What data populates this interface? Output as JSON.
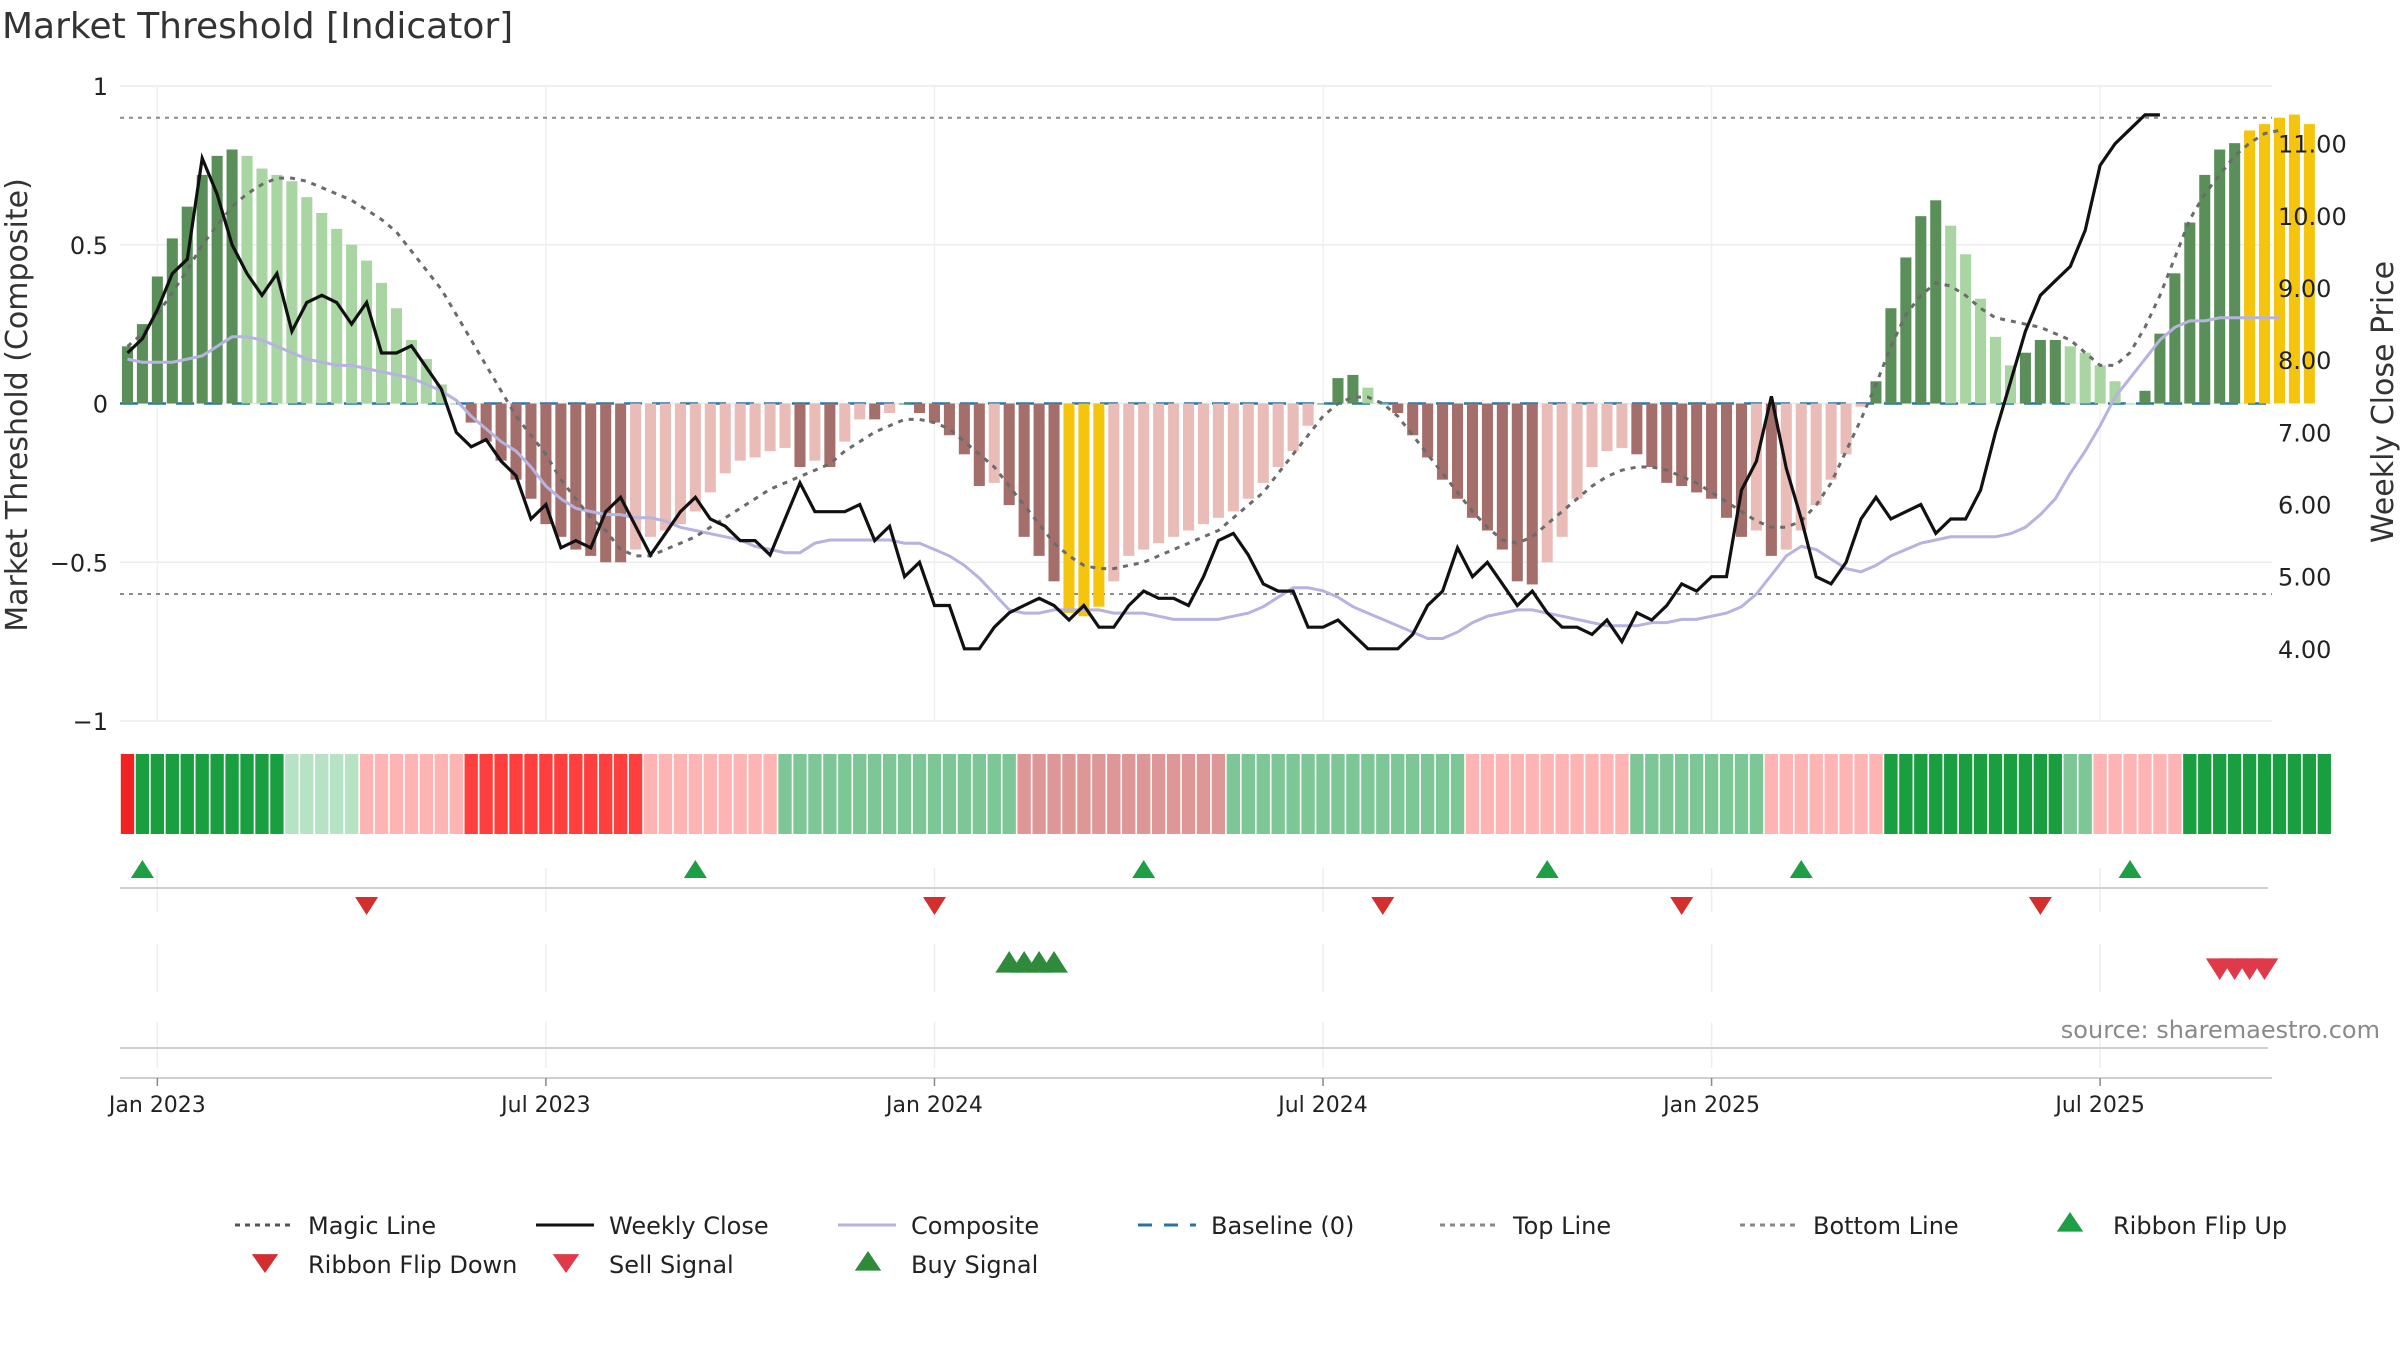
{
  "chart_data": {
    "type": "bar",
    "title": "Market Threshold [Indicator]",
    "ylabel_left": "Market Threshold (Composite)",
    "ylabel_right": "Weekly Close Price",
    "ylim_left": [
      -1,
      1
    ],
    "ylim_right": [
      3.0,
      11.8
    ],
    "left_ticks": [
      {
        "v": 1,
        "t": "1"
      },
      {
        "v": 0.5,
        "t": "0.5"
      },
      {
        "v": 0,
        "t": "0"
      },
      {
        "v": -0.5,
        "t": "−0.5"
      },
      {
        "v": -1,
        "t": "−1"
      }
    ],
    "right_ticks": [
      {
        "v": 11,
        "t": "11.00"
      },
      {
        "v": 10,
        "t": "10.00"
      },
      {
        "v": 9,
        "t": "9.00"
      },
      {
        "v": 8,
        "t": "8.00"
      },
      {
        "v": 7,
        "t": "7.00"
      },
      {
        "v": 6,
        "t": "6.00"
      },
      {
        "v": 5,
        "t": "5.00"
      },
      {
        "v": 4,
        "t": "4.00"
      }
    ],
    "x_ticks": [
      {
        "w": 2,
        "t": "Jan 2023"
      },
      {
        "w": 28,
        "t": "Jul 2023"
      },
      {
        "w": 54,
        "t": "Jan 2024"
      },
      {
        "w": 80,
        "t": "Jul 2024"
      },
      {
        "w": 106,
        "t": "Jan 2025"
      },
      {
        "w": 132,
        "t": "Jul 2025"
      }
    ],
    "weeks": 144,
    "top_line": 0.9,
    "bottom_line": -0.6,
    "baseline": 0,
    "histogram": [
      0.18,
      0.25,
      0.4,
      0.52,
      0.62,
      0.72,
      0.78,
      0.8,
      0.78,
      0.74,
      0.72,
      0.7,
      0.65,
      0.6,
      0.55,
      0.5,
      0.45,
      0.38,
      0.3,
      0.2,
      0.14,
      0.06,
      0.0,
      -0.06,
      -0.12,
      -0.18,
      -0.24,
      -0.3,
      -0.38,
      -0.42,
      -0.46,
      -0.48,
      -0.5,
      -0.5,
      -0.46,
      -0.42,
      -0.4,
      -0.38,
      -0.34,
      -0.28,
      -0.22,
      -0.18,
      -0.17,
      -0.15,
      -0.14,
      -0.2,
      -0.18,
      -0.2,
      -0.12,
      -0.05,
      -0.05,
      -0.03,
      0.0,
      -0.03,
      -0.06,
      -0.1,
      -0.16,
      -0.26,
      -0.25,
      -0.32,
      -0.42,
      -0.48,
      -0.56,
      -0.66,
      -0.67,
      -0.64,
      -0.56,
      -0.48,
      -0.46,
      -0.44,
      -0.42,
      -0.4,
      -0.38,
      -0.36,
      -0.34,
      -0.3,
      -0.25,
      -0.2,
      -0.15,
      -0.07,
      0.0,
      0.08,
      0.09,
      0.05,
      0.0,
      -0.03,
      -0.1,
      -0.17,
      -0.24,
      -0.3,
      -0.36,
      -0.4,
      -0.46,
      -0.56,
      -0.57,
      -0.5,
      -0.42,
      -0.3,
      -0.2,
      -0.15,
      -0.14,
      -0.16,
      -0.2,
      -0.25,
      -0.26,
      -0.28,
      -0.3,
      -0.36,
      -0.42,
      -0.4,
      -0.48,
      -0.46,
      -0.4,
      -0.32,
      -0.24,
      -0.16,
      -0.01,
      0.07,
      0.3,
      0.46,
      0.59,
      0.64,
      0.56,
      0.47,
      0.33,
      0.21,
      0.12,
      0.16,
      0.2,
      0.2,
      0.18,
      0.16,
      0.12,
      0.07,
      0.0,
      0.04,
      0.22,
      0.41,
      0.57,
      0.72,
      0.8,
      0.82,
      0.86,
      0.88,
      0.9,
      0.91,
      0.88
    ],
    "composite": [
      0.14,
      0.13,
      0.13,
      0.13,
      0.14,
      0.15,
      0.18,
      0.21,
      0.21,
      0.2,
      0.18,
      0.16,
      0.14,
      0.13,
      0.12,
      0.12,
      0.11,
      0.1,
      0.09,
      0.08,
      0.06,
      0.04,
      0.01,
      -0.04,
      -0.08,
      -0.12,
      -0.15,
      -0.2,
      -0.26,
      -0.3,
      -0.33,
      -0.34,
      -0.35,
      -0.35,
      -0.36,
      -0.36,
      -0.37,
      -0.39,
      -0.4,
      -0.41,
      -0.42,
      -0.43,
      -0.45,
      -0.46,
      -0.47,
      -0.47,
      -0.44,
      -0.43,
      -0.43,
      -0.43,
      -0.43,
      -0.43,
      -0.44,
      -0.44,
      -0.46,
      -0.48,
      -0.51,
      -0.55,
      -0.6,
      -0.65,
      -0.66,
      -0.66,
      -0.65,
      -0.65,
      -0.65,
      -0.65,
      -0.66,
      -0.66,
      -0.66,
      -0.67,
      -0.68,
      -0.68,
      -0.68,
      -0.68,
      -0.67,
      -0.66,
      -0.64,
      -0.61,
      -0.58,
      -0.58,
      -0.59,
      -0.61,
      -0.64,
      -0.66,
      -0.68,
      -0.7,
      -0.72,
      -0.74,
      -0.74,
      -0.72,
      -0.69,
      -0.67,
      -0.66,
      -0.65,
      -0.65,
      -0.66,
      -0.67,
      -0.68,
      -0.69,
      -0.7,
      -0.7,
      -0.7,
      -0.69,
      -0.69,
      -0.68,
      -0.68,
      -0.67,
      -0.66,
      -0.64,
      -0.6,
      -0.54,
      -0.48,
      -0.45,
      -0.46,
      -0.49,
      -0.52,
      -0.53,
      -0.51,
      -0.48,
      -0.46,
      -0.44,
      -0.43,
      -0.42,
      -0.42,
      -0.42,
      -0.42,
      -0.41,
      -0.39,
      -0.35,
      -0.3,
      -0.22,
      -0.15,
      -0.07,
      0.02,
      0.08,
      0.14,
      0.2,
      0.24,
      0.26,
      0.26,
      0.27,
      0.27,
      0.27,
      0.27,
      0.27
    ],
    "magic_line": [
      0.18,
      0.22,
      0.28,
      0.35,
      0.42,
      0.5,
      0.56,
      0.62,
      0.66,
      0.69,
      0.71,
      0.71,
      0.7,
      0.68,
      0.66,
      0.64,
      0.61,
      0.58,
      0.54,
      0.48,
      0.42,
      0.36,
      0.28,
      0.2,
      0.12,
      0.04,
      -0.04,
      -0.1,
      -0.16,
      -0.24,
      -0.3,
      -0.36,
      -0.4,
      -0.46,
      -0.48,
      -0.48,
      -0.46,
      -0.44,
      -0.42,
      -0.39,
      -0.36,
      -0.33,
      -0.3,
      -0.27,
      -0.25,
      -0.23,
      -0.21,
      -0.19,
      -0.15,
      -0.12,
      -0.09,
      -0.07,
      -0.05,
      -0.05,
      -0.06,
      -0.08,
      -0.12,
      -0.16,
      -0.2,
      -0.26,
      -0.32,
      -0.38,
      -0.44,
      -0.48,
      -0.51,
      -0.52,
      -0.52,
      -0.51,
      -0.5,
      -0.48,
      -0.46,
      -0.44,
      -0.42,
      -0.4,
      -0.36,
      -0.32,
      -0.28,
      -0.22,
      -0.16,
      -0.1,
      -0.04,
      0.0,
      0.02,
      0.02,
      0.0,
      -0.04,
      -0.1,
      -0.16,
      -0.22,
      -0.28,
      -0.34,
      -0.39,
      -0.43,
      -0.44,
      -0.42,
      -0.38,
      -0.34,
      -0.3,
      -0.26,
      -0.23,
      -0.21,
      -0.2,
      -0.2,
      -0.21,
      -0.23,
      -0.25,
      -0.28,
      -0.31,
      -0.34,
      -0.37,
      -0.39,
      -0.39,
      -0.37,
      -0.32,
      -0.25,
      -0.15,
      -0.05,
      0.06,
      0.18,
      0.28,
      0.34,
      0.38,
      0.37,
      0.34,
      0.3,
      0.27,
      0.26,
      0.25,
      0.24,
      0.22,
      0.2,
      0.16,
      0.12,
      0.12,
      0.16,
      0.24,
      0.34,
      0.46,
      0.58,
      0.66,
      0.72,
      0.78,
      0.82,
      0.85,
      0.86
    ],
    "weekly_close": [
      8.1,
      8.3,
      8.7,
      9.2,
      9.4,
      10.8,
      10.3,
      9.6,
      9.2,
      8.9,
      9.2,
      8.4,
      8.8,
      8.9,
      8.8,
      8.5,
      8.8,
      8.1,
      8.1,
      8.2,
      7.9,
      7.6,
      7.0,
      6.8,
      6.9,
      6.6,
      6.4,
      5.8,
      6.0,
      5.4,
      5.5,
      5.4,
      5.9,
      6.1,
      5.7,
      5.3,
      5.6,
      5.9,
      6.1,
      5.8,
      5.7,
      5.5,
      5.5,
      5.3,
      5.8,
      6.3,
      5.9,
      5.9,
      5.9,
      6.0,
      5.5,
      5.7,
      5.0,
      5.2,
      4.6,
      4.6,
      4.0,
      4.0,
      4.3,
      4.5,
      4.6,
      4.7,
      4.6,
      4.4,
      4.6,
      4.3,
      4.3,
      4.6,
      4.8,
      4.7,
      4.7,
      4.6,
      5.0,
      5.5,
      5.6,
      5.3,
      4.9,
      4.8,
      4.8,
      4.3,
      4.3,
      4.4,
      4.2,
      4.0,
      4.0,
      4.0,
      4.2,
      4.6,
      4.8,
      5.4,
      5.0,
      5.2,
      4.9,
      4.6,
      4.8,
      4.5,
      4.3,
      4.3,
      4.2,
      4.4,
      4.1,
      4.5,
      4.4,
      4.6,
      4.9,
      4.8,
      5.0,
      5.0,
      6.2,
      6.6,
      7.5,
      6.5,
      5.8,
      5.0,
      4.9,
      5.2,
      5.8,
      6.1,
      5.8,
      5.9,
      6.0,
      5.6,
      5.8,
      5.8,
      6.2,
      7.0,
      7.7,
      8.4,
      8.9,
      9.1,
      9.3,
      9.8,
      10.7,
      11.0,
      11.2,
      11.4,
      11.4
    ]
  },
  "ribbon": {
    "colors": [
      "#ef2323",
      "#ff3e3e",
      "#ffb4b4",
      "#1a9f40",
      "#b7e3c5",
      "#7dc797",
      "#f0c0c0",
      "#de9797"
    ],
    "pattern": [
      0,
      3,
      3,
      3,
      3,
      3,
      3,
      3,
      3,
      3,
      3,
      4,
      4,
      4,
      4,
      4,
      2,
      2,
      2,
      2,
      2,
      2,
      2,
      1,
      1,
      1,
      1,
      1,
      1,
      1,
      1,
      1,
      1,
      1,
      1,
      2,
      2,
      2,
      2,
      2,
      2,
      2,
      2,
      2,
      5,
      5,
      5,
      5,
      5,
      5,
      5,
      5,
      5,
      5,
      5,
      5,
      5,
      5,
      5,
      5,
      7,
      7,
      7,
      7,
      7,
      7,
      7,
      7,
      7,
      7,
      7,
      7,
      7,
      7,
      5,
      5,
      5,
      5,
      5,
      5,
      5,
      5,
      5,
      5,
      5,
      5,
      5,
      5,
      5,
      5,
      2,
      2,
      2,
      2,
      2,
      2,
      2,
      2,
      2,
      2,
      2,
      5,
      5,
      5,
      5,
      5,
      5,
      5,
      5,
      5,
      2,
      2,
      2,
      2,
      2,
      2,
      2,
      2,
      3,
      3,
      3,
      3,
      3,
      3,
      3,
      3,
      3,
      3,
      3,
      3,
      5,
      5,
      2,
      2,
      2,
      2,
      2,
      2,
      3,
      3,
      3,
      3,
      3,
      3,
      3,
      3,
      3,
      3
    ]
  },
  "signals": {
    "flip_up": [
      1,
      38,
      68,
      95,
      112,
      134
    ],
    "flip_down": [
      16,
      54,
      84,
      104,
      128
    ],
    "buy": [
      59,
      60,
      61,
      62
    ],
    "sell": [
      140,
      141,
      142,
      143
    ]
  },
  "colors": {
    "strong_up": "#5a8f5a",
    "weak_up": "#a8d5a2",
    "strong_down": "#a46e6a",
    "weak_down": "#e9bcb8",
    "extreme": "#f5c40d",
    "close": "#111111",
    "composite": "#b6b3e1",
    "magic": "#6b6b6b",
    "baseline": "#2874a6",
    "flip_up": "#1e9e45",
    "flip_down": "#d32f2f",
    "buy": "#2e8b3a",
    "sell": "#e03a4a"
  },
  "source": "source: sharemaestro.com",
  "legend": [
    {
      "label": "Magic Line",
      "kind": "dotted",
      "color": "#555"
    },
    {
      "label": "Weekly Close",
      "kind": "solid",
      "color": "#111"
    },
    {
      "label": "Composite",
      "kind": "solid",
      "color": "#b6b3e1"
    },
    {
      "label": "Baseline (0)",
      "kind": "dashed",
      "color": "#2874a6"
    },
    {
      "label": "Top Line",
      "kind": "dotted",
      "color": "#888"
    },
    {
      "label": "Bottom Line",
      "kind": "dotted",
      "color": "#888"
    },
    {
      "label": "Ribbon Flip Up",
      "kind": "tri-up",
      "color": "#1e9e45"
    },
    {
      "label": "Ribbon Flip Down",
      "kind": "tri-down",
      "color": "#d32f2f"
    },
    {
      "label": "Sell Signal",
      "kind": "tri-down",
      "color": "#e03a4a"
    },
    {
      "label": "Buy Signal",
      "kind": "tri-up",
      "color": "#2e8b3a"
    }
  ]
}
